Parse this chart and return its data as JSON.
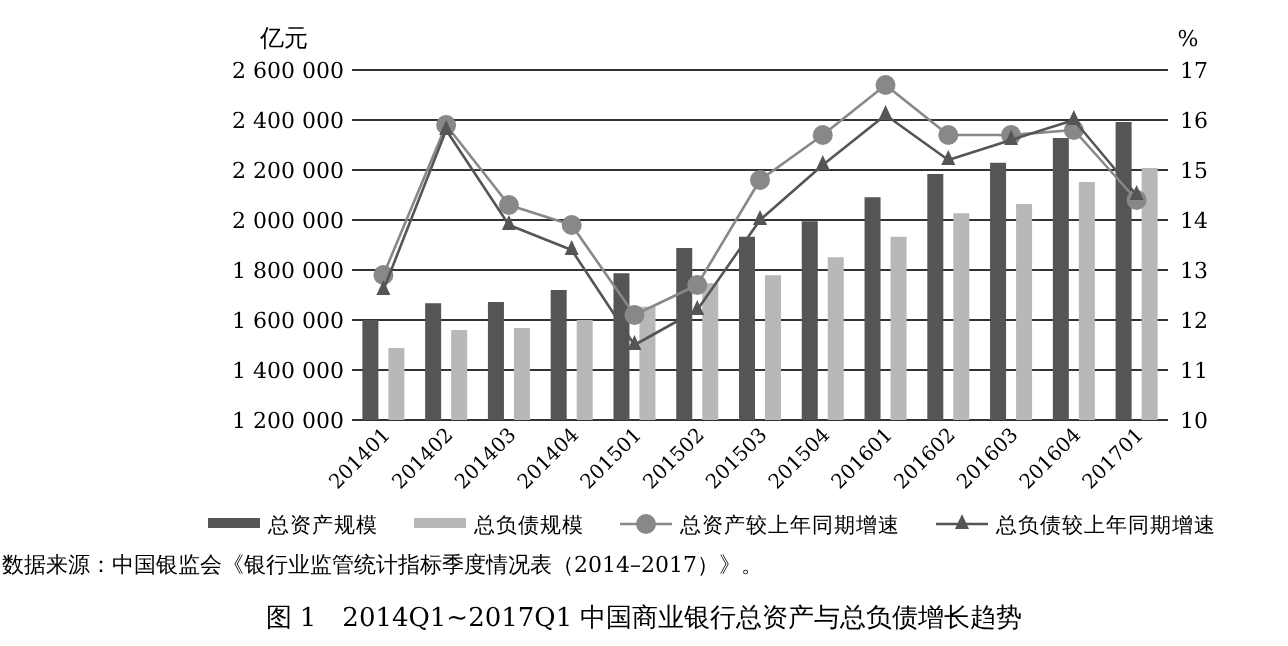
{
  "chart_data": {
    "type": "bar",
    "title": "图 1　2014Q1~2017Q1 中国商业银行总资产与总负债增长趋势",
    "ylabel": "亿元",
    "y2label": "%",
    "categories": [
      "201401",
      "201402",
      "201403",
      "201404",
      "201501",
      "201502",
      "201503",
      "201504",
      "201601",
      "201602",
      "201603",
      "201604",
      "201701"
    ],
    "series": [
      {
        "name": "总资产规模",
        "color": "#555555",
        "values": [
          1600000,
          1667000,
          1672000,
          1720000,
          1787000,
          1888000,
          1933000,
          1995000,
          2091000,
          2184000,
          2229000,
          2328000,
          2392000
        ]
      },
      {
        "name": "总负债规模",
        "color": "#b8b8b8",
        "values": [
          1488000,
          1560000,
          1568000,
          1600000,
          1653000,
          1747000,
          1779000,
          1851000,
          1933000,
          2027000,
          2064000,
          2152000,
          2208000
        ]
      },
      {
        "name": "总资产较上年同期增速",
        "type": "line",
        "axis": "y2",
        "marker": "circle",
        "color": "#888888",
        "values": [
          12.9,
          15.9,
          14.3,
          13.9,
          12.1,
          12.7,
          14.8,
          15.7,
          16.7,
          15.7,
          15.7,
          15.8,
          14.4
        ]
      },
      {
        "name": "总负债较上年同期增速",
        "type": "line",
        "axis": "y2",
        "marker": "triangle",
        "color": "#555555",
        "values": [
          12.6,
          15.8,
          13.9,
          13.4,
          11.5,
          12.2,
          14.0,
          15.1,
          16.1,
          15.2,
          15.6,
          16.0,
          14.5
        ]
      }
    ],
    "ylim": [
      1200000,
      2600000
    ],
    "yticks": [
      {
        "value": 1200000,
        "label": "1 200 000"
      },
      {
        "value": 1400000,
        "label": "1 400 000"
      },
      {
        "value": 1600000,
        "label": "1 600 000"
      },
      {
        "value": 1800000,
        "label": "1 800 000"
      },
      {
        "value": 2000000,
        "label": "2 000 000"
      },
      {
        "value": 2200000,
        "label": "2 200 000"
      },
      {
        "value": 2400000,
        "label": "2 400 000"
      },
      {
        "value": 2600000,
        "label": "2 600 000"
      }
    ],
    "y2lim": [
      10,
      17
    ],
    "y2ticks": [
      10,
      11,
      12,
      13,
      14,
      15,
      16,
      17
    ],
    "grid": "y",
    "legend": "bottom",
    "annotations": [
      "数据来源：中国银监会《银行业监管统计指标季度情况表（2014–2017）》。"
    ]
  }
}
